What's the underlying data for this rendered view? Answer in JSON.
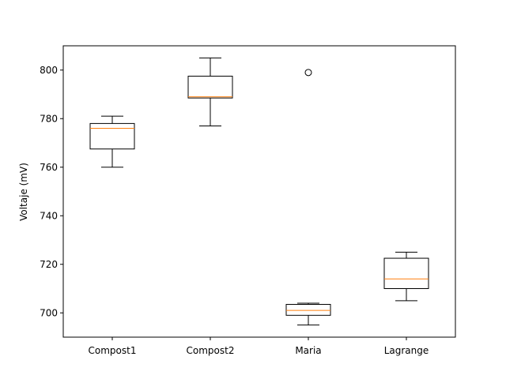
{
  "chart_data": {
    "type": "box",
    "title": "",
    "xlabel": "",
    "ylabel": "Voltaje (mV)",
    "ylim": [
      690,
      810
    ],
    "yticks": [
      700,
      720,
      740,
      760,
      780,
      800
    ],
    "grid": false,
    "categories": [
      "Compost1",
      "Compost2",
      "Maria",
      "Lagrange"
    ],
    "boxes": [
      {
        "category": "Compost1",
        "whisker_low": 760,
        "q1": 767.5,
        "median": 776,
        "q3": 778,
        "whisker_high": 781,
        "outliers": []
      },
      {
        "category": "Compost2",
        "whisker_low": 777,
        "q1": 788.5,
        "median": 789,
        "q3": 797.5,
        "whisker_high": 805,
        "outliers": []
      },
      {
        "category": "Maria",
        "whisker_low": 695,
        "q1": 699,
        "median": 701,
        "q3": 703.5,
        "whisker_high": 704,
        "outliers": [
          799
        ]
      },
      {
        "category": "Lagrange",
        "whisker_low": 705,
        "q1": 710,
        "median": 714,
        "q3": 722.5,
        "whisker_high": 725,
        "outliers": []
      }
    ],
    "colors": {
      "box": "#000000",
      "median": "#ff7f0e",
      "outlier": "#000000"
    }
  }
}
